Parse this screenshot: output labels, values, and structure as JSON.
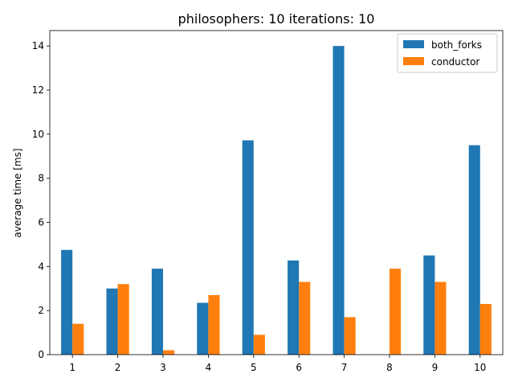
{
  "chart_data": {
    "type": "bar",
    "title": "philosophers: 10   iterations: 10",
    "xlabel": "",
    "ylabel": "average time [ms]",
    "categories": [
      "1",
      "2",
      "3",
      "4",
      "5",
      "6",
      "7",
      "8",
      "9",
      "10"
    ],
    "ylim": [
      0,
      14.7
    ],
    "yticks": [
      0,
      2,
      4,
      6,
      8,
      10,
      12,
      14
    ],
    "grid": false,
    "legend": "top-right",
    "series": [
      {
        "name": "both_forks",
        "color": "#1f77b4",
        "values": [
          4.75,
          3.0,
          3.9,
          2.35,
          9.72,
          4.27,
          14.0,
          0.0,
          4.5,
          9.5
        ]
      },
      {
        "name": "conductor",
        "color": "#ff7f0e",
        "values": [
          1.4,
          3.2,
          0.2,
          2.7,
          0.9,
          3.3,
          1.7,
          3.9,
          3.3,
          2.3
        ]
      }
    ]
  }
}
